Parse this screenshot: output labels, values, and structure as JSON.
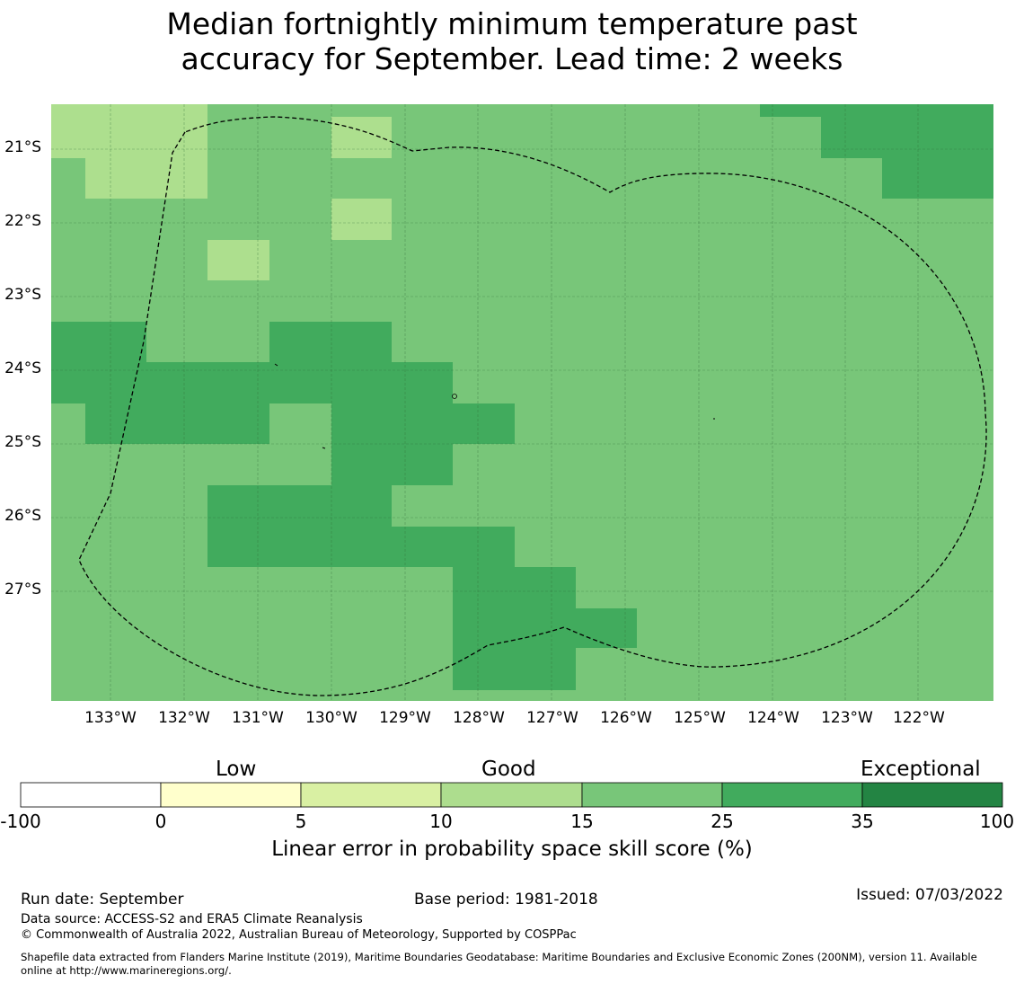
{
  "title": {
    "line1": "Median fortnightly minimum temperature past",
    "line2": "accuracy for September. Lead time: 2 weeks"
  },
  "map": {
    "lat_ticks": [
      "21°S",
      "22°S",
      "23°S",
      "24°S",
      "25°S",
      "26°S",
      "27°S"
    ],
    "lon_ticks": [
      "133°W",
      "132°W",
      "131°W",
      "130°W",
      "129°W",
      "128°W",
      "127°W",
      "126°W",
      "125°W",
      "124°W",
      "123°W",
      "122°W"
    ],
    "grid": true,
    "boundary": "dashed",
    "colors": {
      "good_light": "#addf8e",
      "good_mid": "#78c679",
      "good_dark": "#41ab5d"
    }
  },
  "colorbar": {
    "category_labels": [
      "Low",
      "Good",
      "Exceptional"
    ],
    "tick_labels": [
      "-100",
      "0",
      "5",
      "10",
      "15",
      "25",
      "35",
      "100"
    ],
    "colors": [
      "#ffffff",
      "#ffffcc",
      "#d9f0a3",
      "#addd8e",
      "#78c679",
      "#41ab5d",
      "#238443"
    ],
    "xlabel": "Linear error in probability space skill score (%)"
  },
  "footer": {
    "run_date": "Run date: September",
    "base_period": "Base period: 1981-2018",
    "issued": "Issued: 07/03/2022",
    "data_source": "Data source: ACCESS-S2 and ERA5 Climate Reanalysis",
    "copyright": "© Commonwealth of Australia 2022, Australian Bureau of Meteorology, Supported by COSPPac",
    "shapefile_line1": "Shapefile data extracted from Flanders Marine Institute (2019), Maritime Boundaries Geodatabase: Maritime Boundaries and Exclusive Economic Zones (200NM), version 11. Available",
    "shapefile_line2": "online at http://www.marineregions.org/."
  }
}
